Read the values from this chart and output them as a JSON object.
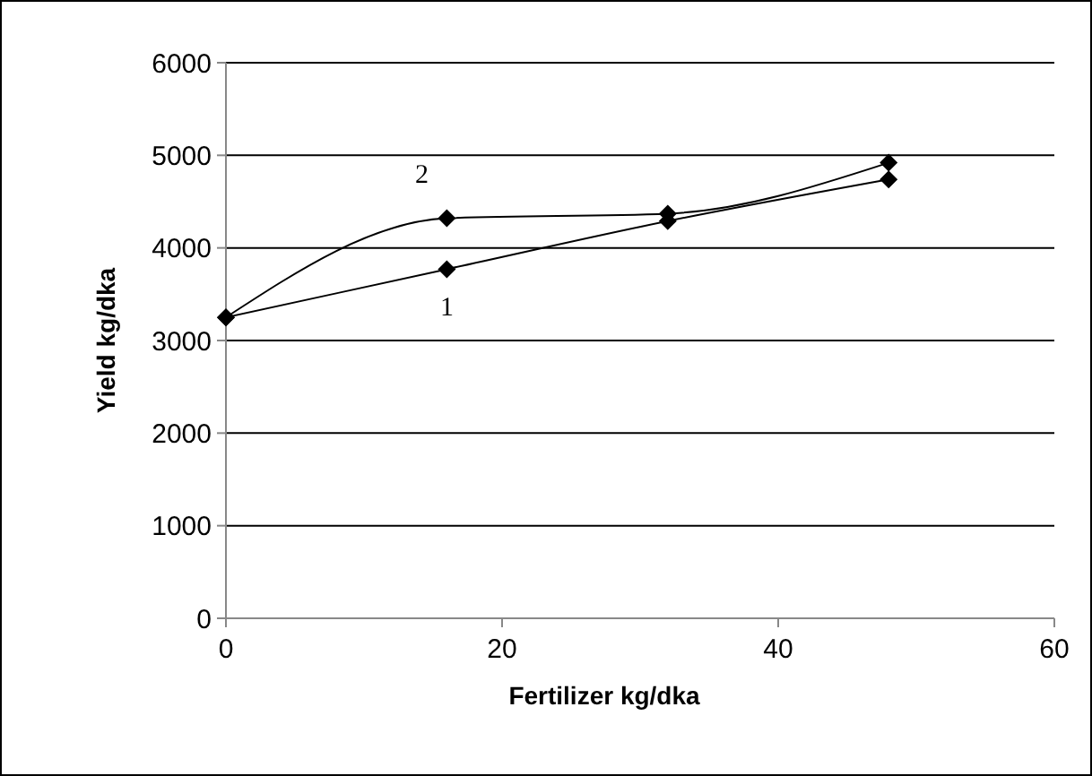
{
  "chart_data": {
    "type": "line",
    "xlabel": "Fertilizer  kg/dka",
    "ylabel": "Yield  kg/dka",
    "x": [
      0,
      16,
      32,
      48
    ],
    "series": [
      {
        "name": "1",
        "color": "#000000",
        "values": [
          3250,
          3770,
          4290,
          4740
        ]
      },
      {
        "name": "2",
        "color": "#000000",
        "values": [
          3250,
          4320,
          4370,
          4920
        ]
      }
    ],
    "xlim": [
      0,
      60
    ],
    "xticks": [
      0,
      20,
      40,
      60
    ],
    "ylim": [
      0,
      6000
    ],
    "yticks": [
      0,
      1000,
      2000,
      3000,
      4000,
      5000,
      6000
    ],
    "grid": "y",
    "marker": "diamond"
  }
}
